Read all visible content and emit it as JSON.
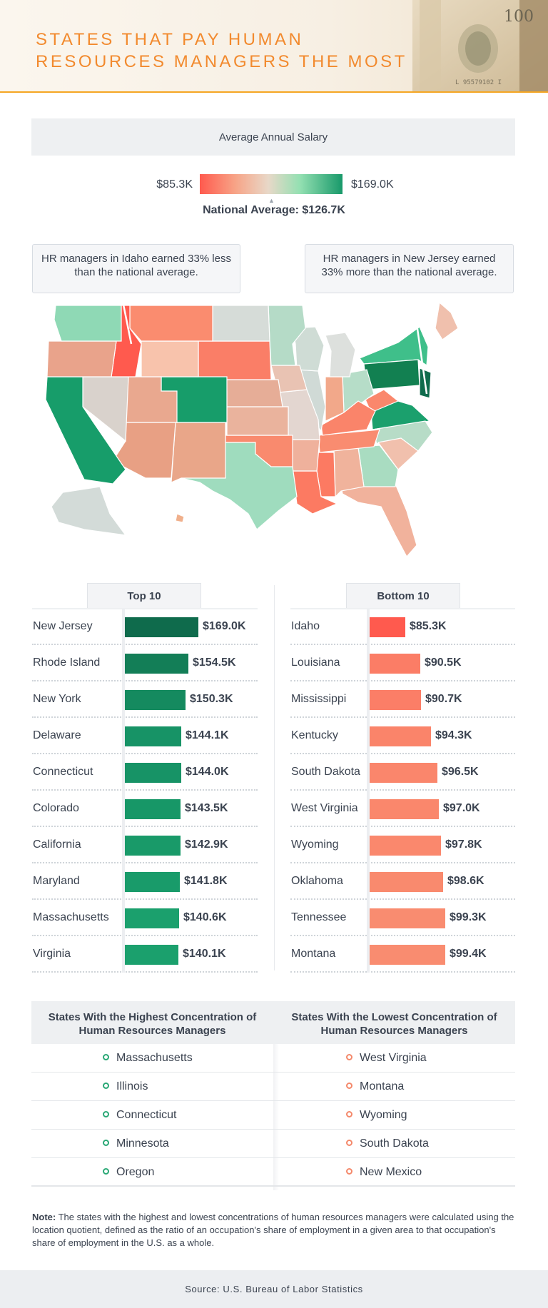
{
  "header": {
    "title_line1": "STATES THAT PAY HUMAN",
    "title_line2": "RESOURCES MANAGERS THE MOST",
    "bill_serial": "L 95579102 I",
    "bill_value": "100"
  },
  "legend": {
    "title": "Average Annual Salary",
    "min_label": "$85.3K",
    "max_label": "$169.0K",
    "national_average": "National Average: $126.7K",
    "colors": {
      "low": "#ff5a4e",
      "mid": "#e8d8c8",
      "high": "#18996a"
    }
  },
  "callouts": {
    "left": "HR managers in Idaho earned 33% less than the national average.",
    "right": "HR managers in New Jersey earned 33% more than the national average."
  },
  "chart_data": [
    {
      "type": "bar",
      "title": "Top 10",
      "categories": [
        "New Jersey",
        "Rhode Island",
        "New York",
        "Delaware",
        "Connecticut",
        "Colorado",
        "California",
        "Maryland",
        "Massachusetts",
        "Virginia"
      ],
      "values": [
        169.0,
        154.5,
        150.3,
        144.1,
        144.0,
        143.5,
        142.9,
        141.8,
        140.6,
        140.1
      ],
      "value_labels": [
        "$169.0K",
        "$154.5K",
        "$150.3K",
        "$144.1K",
        "$144.0K",
        "$143.5K",
        "$142.9K",
        "$141.8K",
        "$140.6K",
        "$140.1K"
      ],
      "colors": [
        "#0f6b4c",
        "#137e57",
        "#158a5f",
        "#179366",
        "#179366",
        "#179767",
        "#199a69",
        "#199b6a",
        "#1ba06d",
        "#1ba06d"
      ],
      "orientation": "horizontal"
    },
    {
      "type": "bar",
      "title": "Bottom 10",
      "categories": [
        "Idaho",
        "Louisiana",
        "Mississippi",
        "Kentucky",
        "South Dakota",
        "West Virginia",
        "Wyoming",
        "Oklahoma",
        "Tennessee",
        "Montana"
      ],
      "values": [
        85.3,
        90.5,
        90.7,
        94.3,
        96.5,
        97.0,
        97.8,
        98.6,
        99.3,
        99.4
      ],
      "value_labels": [
        "$85.3K",
        "$90.5K",
        "$90.7K",
        "$94.3K",
        "$96.5K",
        "$97.0K",
        "$97.8K",
        "$98.6K",
        "$99.3K",
        "$99.4K"
      ],
      "colors": [
        "#ff5a4e",
        "#fb7d66",
        "#fb7e67",
        "#fa846a",
        "#fa866c",
        "#fa876c",
        "#fa886d",
        "#f98a6e",
        "#f98c70",
        "#f98c70"
      ],
      "orientation": "horizontal"
    }
  ],
  "map": {
    "states": [
      {
        "name": "WA",
        "color": "#8fd9b5"
      },
      {
        "name": "OR",
        "color": "#e9a38b"
      },
      {
        "name": "CA",
        "color": "#179d6a"
      },
      {
        "name": "ID",
        "color": "#ff5a4e"
      },
      {
        "name": "NV",
        "color": "#d9d2cc"
      },
      {
        "name": "MT",
        "color": "#fa8c6f"
      },
      {
        "name": "WY",
        "color": "#f8c3ac"
      },
      {
        "name": "UT",
        "color": "#e9a88f"
      },
      {
        "name": "AZ",
        "color": "#e8a084"
      },
      {
        "name": "CO",
        "color": "#179d6a"
      },
      {
        "name": "NM",
        "color": "#e9a689"
      },
      {
        "name": "ND",
        "color": "#d6dcd8"
      },
      {
        "name": "SD",
        "color": "#fa7e67"
      },
      {
        "name": "NE",
        "color": "#e6ad97"
      },
      {
        "name": "KS",
        "color": "#eab39d"
      },
      {
        "name": "OK",
        "color": "#f98a6e"
      },
      {
        "name": "TX",
        "color": "#9fdcbe"
      },
      {
        "name": "MN",
        "color": "#b5dbc7"
      },
      {
        "name": "IA",
        "color": "#e9c3b3"
      },
      {
        "name": "MO",
        "color": "#e3d6d0"
      },
      {
        "name": "AR",
        "color": "#efb19c"
      },
      {
        "name": "LA",
        "color": "#fc7a62"
      },
      {
        "name": "WI",
        "color": "#cfdcd5"
      },
      {
        "name": "IL",
        "color": "#d0dad6"
      },
      {
        "name": "MS",
        "color": "#fc7a62"
      },
      {
        "name": "MI",
        "color": "#dde0dd"
      },
      {
        "name": "IN",
        "color": "#f2a88a"
      },
      {
        "name": "KY",
        "color": "#fa846a"
      },
      {
        "name": "TN",
        "color": "#f98c70"
      },
      {
        "name": "AL",
        "color": "#f0b39c"
      },
      {
        "name": "OH",
        "color": "#b6ddc8"
      },
      {
        "name": "GA",
        "color": "#a9dcc1"
      },
      {
        "name": "FL",
        "color": "#f1b29c"
      },
      {
        "name": "SC",
        "color": "#f1c0ad"
      },
      {
        "name": "NC",
        "color": "#b7dcc7"
      },
      {
        "name": "VA",
        "color": "#1ba06d"
      },
      {
        "name": "WV",
        "color": "#fa876c"
      },
      {
        "name": "PA",
        "color": "#128051"
      },
      {
        "name": "NY",
        "color": "#3fbf8a"
      },
      {
        "name": "ME",
        "color": "#f0c0ad"
      },
      {
        "name": "NJ",
        "color": "#0f6b4c"
      },
      {
        "name": "AK",
        "color": "#d3dbd8"
      },
      {
        "name": "HI",
        "color": "#f0b08c"
      }
    ]
  },
  "concentration": {
    "high_title": "States With the Highest Concentration of Human Resources Managers",
    "low_title": "States With the Lowest Concentration of Human Resources Managers",
    "high": [
      "Massachusetts",
      "Illinois",
      "Connecticut",
      "Minnesota",
      "Oregon"
    ],
    "low": [
      "West Virginia",
      "Montana",
      "Wyoming",
      "South Dakota",
      "New Mexico"
    ]
  },
  "note": {
    "label": "Note:",
    "text": " The states with the highest and lowest concentrations of human resources managers were calculated using the location quotient, defined as the ratio of an occupation's share of employment in a given area to that occupation's share of employment in the U.S. as a whole."
  },
  "footer": {
    "source": "Source: U.S. Bureau of Labor Statistics"
  }
}
